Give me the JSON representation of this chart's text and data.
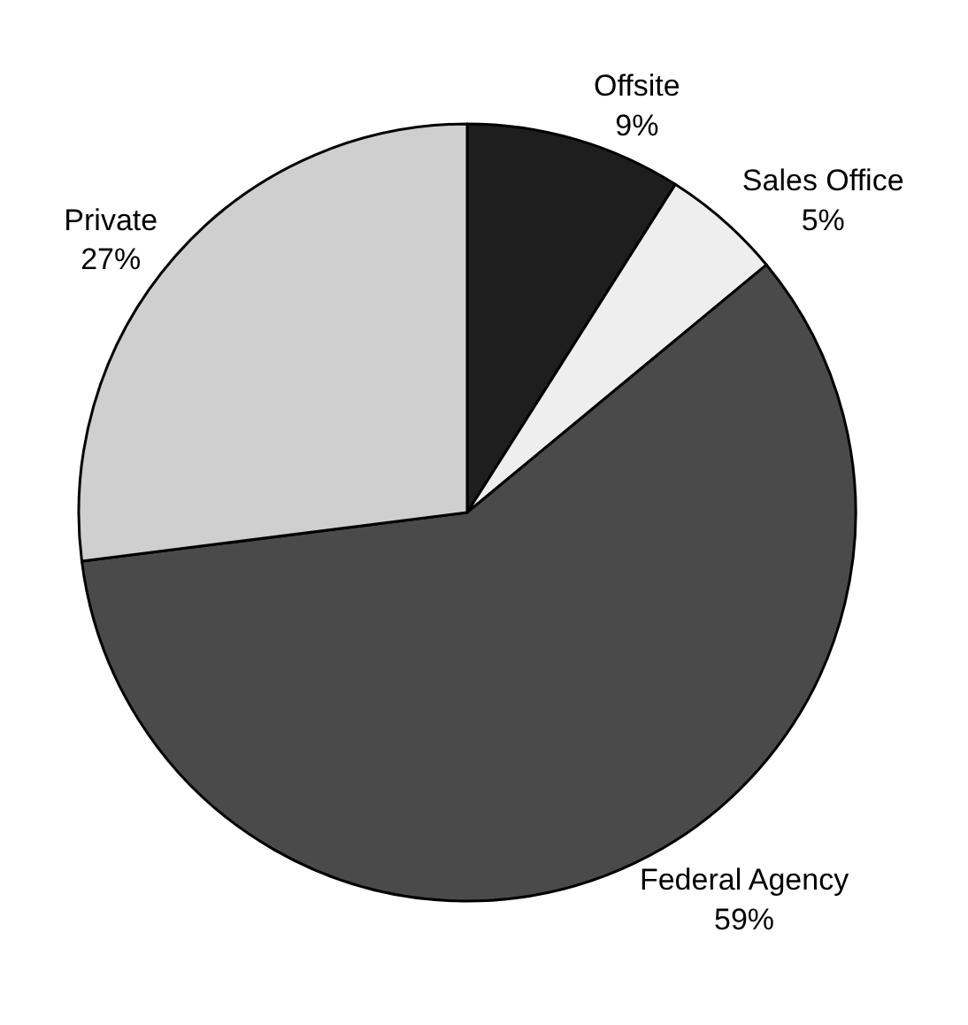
{
  "chart_data": {
    "type": "pie",
    "categories": [
      "Offsite",
      "Sales Office",
      "Federal Agency",
      "Private"
    ],
    "values": [
      9,
      5,
      59,
      27
    ],
    "value_labels": [
      "9%",
      "5%",
      "59%",
      "27%"
    ],
    "colors": [
      "#1e1e1e",
      "#eeeeee",
      "#4a4a4a",
      "#cfcfcf"
    ],
    "legend": false
  }
}
